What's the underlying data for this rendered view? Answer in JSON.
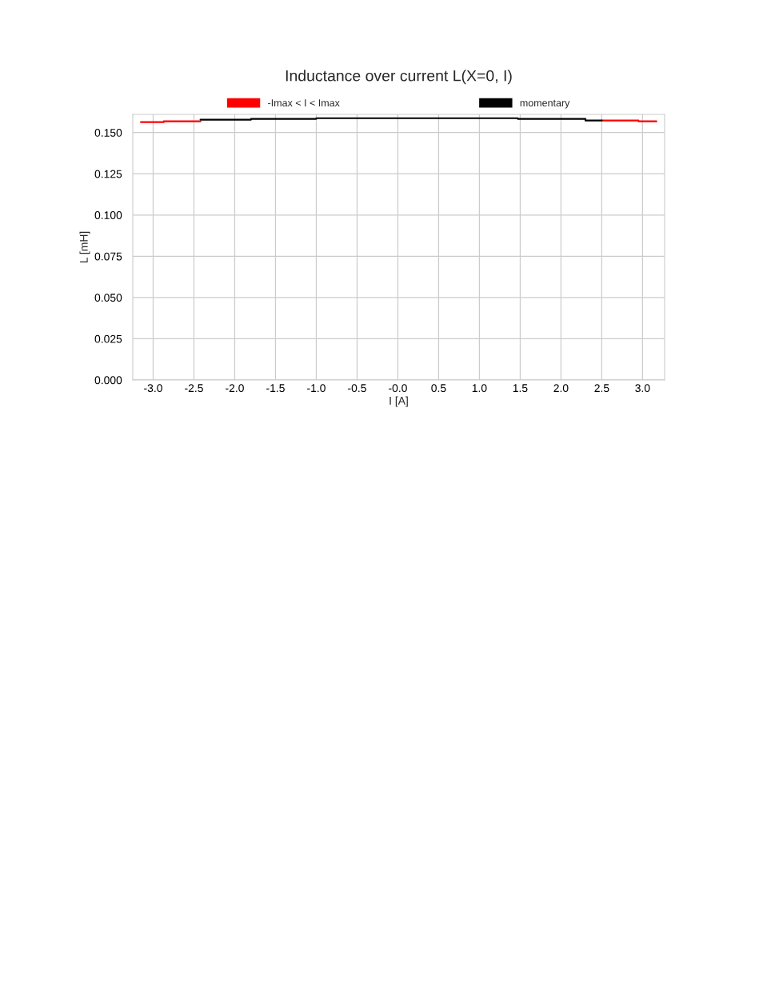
{
  "chart_data": {
    "type": "line",
    "title": "Inductance over current L(X=0, I)",
    "xlabel": "I [A]",
    "ylabel": "L [mH]",
    "series": [
      {
        "name": "-Imax < I < Imax",
        "color": "#ff0000",
        "x": [
          -3.15,
          -2.87,
          -2.87,
          -2.42,
          0,
          2.5,
          2.95,
          2.95,
          3.17
        ],
        "values": [
          0.1563,
          0.1563,
          0.1568,
          0.1568,
          null,
          0.1573,
          0.1573,
          0.1568,
          0.1568
        ]
      },
      {
        "name": "momentary",
        "color": "#000000",
        "x": [
          -2.42,
          -1.8,
          -1.8,
          -1.0,
          -1.0,
          1.47,
          1.47,
          2.3,
          2.3,
          2.5
        ],
        "values": [
          0.1578,
          0.1578,
          0.1583,
          0.1583,
          0.1587,
          0.1587,
          0.1583,
          0.1583,
          0.1573,
          0.1573
        ]
      }
    ],
    "xlim": [
      -3.25,
      3.27
    ],
    "ylim": [
      0,
      0.161
    ],
    "xticks": [
      {
        "value": -3.0,
        "label": "-3.0"
      },
      {
        "value": -2.5,
        "label": "-2.5"
      },
      {
        "value": -2.0,
        "label": "-2.0"
      },
      {
        "value": -1.5,
        "label": "-1.5"
      },
      {
        "value": -1.0,
        "label": "-1.0"
      },
      {
        "value": -0.5,
        "label": "-0.5"
      },
      {
        "value": 0,
        "label": "-0.0"
      },
      {
        "value": 0.5,
        "label": "0.5"
      },
      {
        "value": 1.0,
        "label": "1.0"
      },
      {
        "value": 1.5,
        "label": "1.5"
      },
      {
        "value": 2.0,
        "label": "2.0"
      },
      {
        "value": 2.5,
        "label": "2.5"
      },
      {
        "value": 3.0,
        "label": "3.0"
      }
    ],
    "yticks": [
      {
        "value": 0,
        "label": "0.000"
      },
      {
        "value": 0.025,
        "label": "0.025"
      },
      {
        "value": 0.05,
        "label": "0.050"
      },
      {
        "value": 0.075,
        "label": "0.075"
      },
      {
        "value": 0.1,
        "label": "0.100"
      },
      {
        "value": 0.125,
        "label": "0.125"
      },
      {
        "value": 0.15,
        "label": "0.150"
      }
    ],
    "grid": true,
    "legend": "top",
    "line_style": "solid",
    "marker": "none"
  }
}
